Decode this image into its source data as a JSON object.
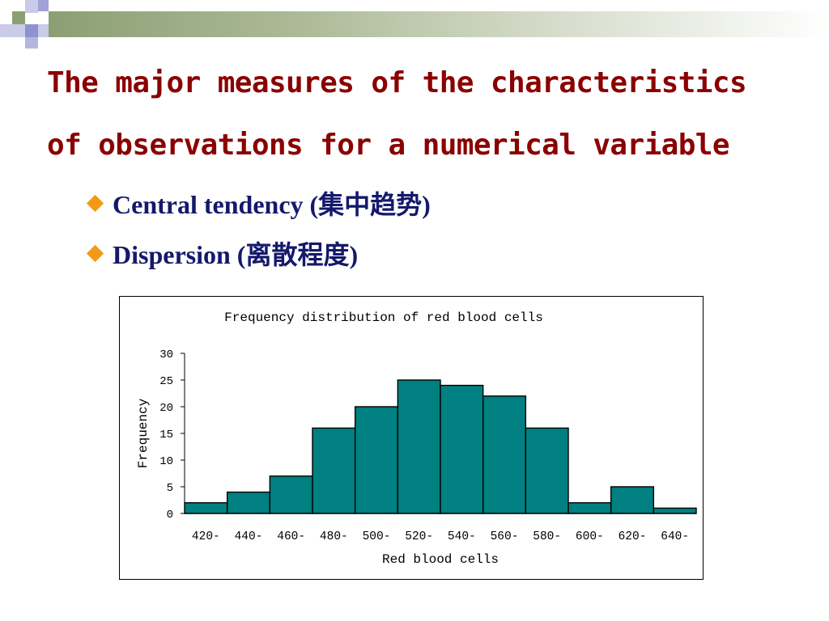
{
  "slide": {
    "title_line1": "The major measures of the characteristics",
    "title_line2": "of observations for a numerical variable",
    "bullets": [
      {
        "text": "Central tendency (集中趋势)"
      },
      {
        "text": "Dispersion (离散程度)"
      }
    ],
    "colors": {
      "title": "#8b0000",
      "bullet_text": "#14196b",
      "bullet_marker": "#f29a17",
      "bar_fill": "#008080"
    }
  },
  "chart_data": {
    "type": "bar",
    "title": "Frequency distribution of red blood cells",
    "xlabel": "Red blood cells",
    "ylabel": "Frequency",
    "categories": [
      "420-",
      "440-",
      "460-",
      "480-",
      "500-",
      "520-",
      "540-",
      "560-",
      "580-",
      "600-",
      "620-",
      "640-"
    ],
    "values": [
      2,
      4,
      7,
      16,
      20,
      25,
      24,
      22,
      16,
      2,
      5,
      1
    ],
    "ylim": [
      0,
      30
    ],
    "yticks": [
      0,
      5,
      10,
      15,
      20,
      25,
      30
    ],
    "grid": false,
    "legend": "none"
  }
}
